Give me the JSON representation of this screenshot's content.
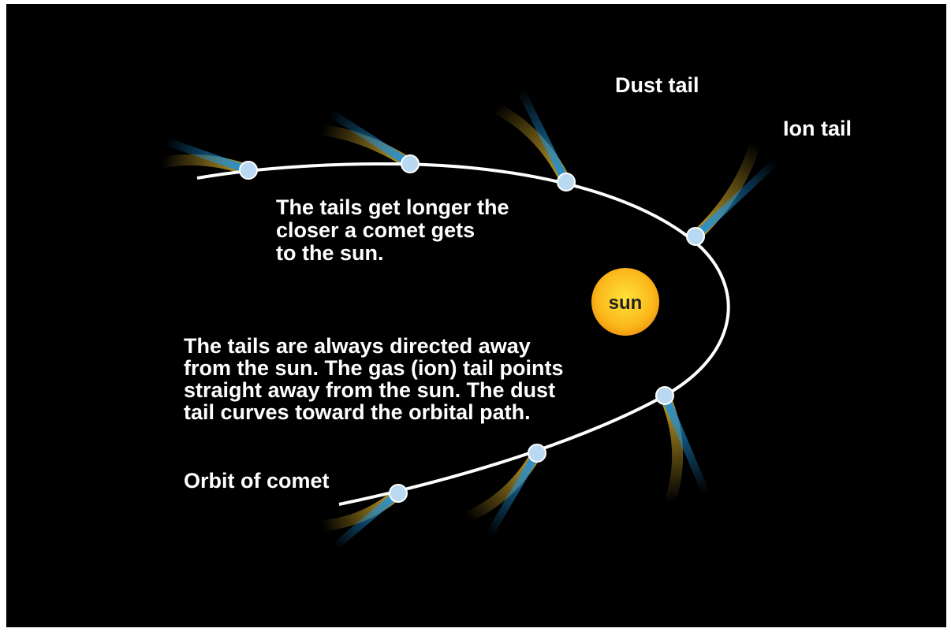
{
  "labels": {
    "dust_tail": "Dust tail",
    "ion_tail": "Ion tail",
    "sun": "sun",
    "orbit": "Orbit of comet"
  },
  "notes": {
    "tail_length": [
      "The tails get longer the",
      "closer a comet gets",
      "to the sun."
    ],
    "tail_direction": [
      "The tails are always directed away",
      "from the sun. The gas (ion) tail points",
      "straight away from the sun. The dust",
      "tail curves toward the orbital path."
    ]
  }
}
